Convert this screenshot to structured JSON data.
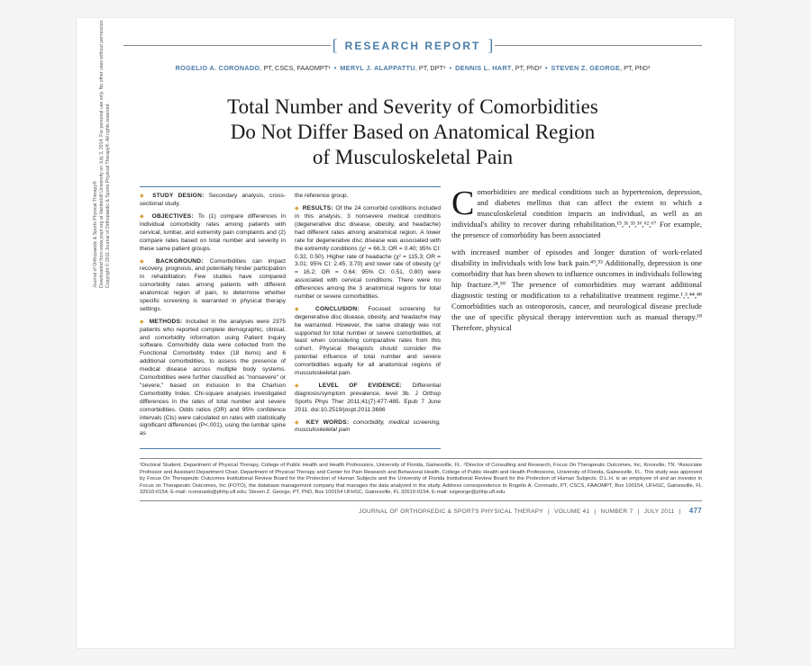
{
  "header": {
    "label": "RESEARCH REPORT"
  },
  "authors": [
    {
      "name": "ROGELIO A. CORONADO",
      "cred": ", PT, CSCS, FAAOMPT¹"
    },
    {
      "name": "MERYL J. ALAPPATTU",
      "cred": ", PT, DPT¹"
    },
    {
      "name": "DENNIS L. HART",
      "cred": ", PT, PhD²"
    },
    {
      "name": "STEVEN Z. GEORGE",
      "cred": ", PT, PhD³"
    }
  ],
  "title": "Total Number and Severity of Comorbidities Do Not Differ Based on Anatomical Region of Musculoskeletal Pain",
  "sidebar": {
    "l1": "Journal of Orthopaedic & Sports Physical Therapy®",
    "l2": "Downloaded from www.jospt.org at Vanderbilt University on July 3, 2014. For personal use only. No other uses without permission.",
    "l3": "Copyright © 2011 Journal of Orthopaedic & Sports Physical Therapy®. All rights reserved."
  },
  "abstract": {
    "col1": [
      {
        "label": "STUDY DESIGN:",
        "text": "Secondary analysis, cross-sectional study."
      },
      {
        "label": "OBJECTIVES:",
        "text": "To (1) compare differences in individual comorbidity rates among patients with cervical, lumbar, and extremity pain complaints and (2) compare rates based on total number and severity in these same patient groups."
      },
      {
        "label": "BACKGROUND:",
        "text": "Comorbidities can impact recovery, prognosis, and potentially hinder participation in rehabilitation. Few studies have compared comorbidity rates among patients with different anatomical region of pain, to determine whether specific screening is warranted in physical therapy settings."
      },
      {
        "label": "METHODS:",
        "text": "Included in the analyses were 2375 patients who reported complete demographic, clinical, and comorbidity information using Patient Inquiry software. Comorbidity data were collected from the Functional Comorbidity Index (18 items) and 6 additional comorbidities, to assess the presence of medical disease across multiple body systems. Comorbidities were further classified as \"nonsevere\" or \"severe,\" based on inclusion in the Charlson Comorbidity Index. Chi-square analyses investigated differences in the rates of total number and severe comorbidities. Odds ratios (OR) and 95% confidence intervals (CIs) were calculated on rates with statistically significant differences (P<.001), using the lumbar spine as"
      }
    ],
    "col2": [
      {
        "label": "",
        "text": "the reference group."
      },
      {
        "label": "RESULTS:",
        "text": "Of the 24 comorbid conditions included in this analysis, 3 nonsevere medical conditions (degenerative disc disease, obesity, and headache) had different rates among anatomical region. A lower rate for degenerative disc disease was associated with the extremity conditions (χ² = 66.3; OR = 0.40; 95% CI: 0.32, 0.50). Higher rate of headache (χ² = 115.3; OR = 3.01; 95% CI: 2.45, 3.70) and lower rate of obesity (χ² = 16.2; OR = 0.64; 95% CI: 0.51, 0.80) were associated with cervical conditions. There were no differences among the 3 anatomical regions for total number or severe comorbidities."
      },
      {
        "label": "CONCLUSION:",
        "text": "Focused screening for degenerative disc disease, obesity, and headache may be warranted. However, the same strategy was not supported for total number or severe comorbidities, at least when considering comparative rates from this cohort. Physical therapists should consider the potential influence of total number and severe comorbidities equally for all anatomical regions of musculoskeletal pain."
      },
      {
        "label": "LEVEL OF EVIDENCE:",
        "text": "Differential diagnosis/symptom prevalence, level 3b. J Orthop Sports Phys Ther 2011;41(7):477-485. Epub 7 June 2011. doi:10.2519/jospt.2011.3686"
      },
      {
        "label": "KEY WORDS:",
        "text": "comorbidity, medical screening, musculoskeletal pain",
        "kw": true
      }
    ]
  },
  "intro": {
    "p1": "omorbidities are medical conditions such as hypertension, depression, and diabetes mellitus that can affect the extent to which a musculoskeletal condition impacts an individual, as well as an individual's ability to recover during rehabilitation.¹⁵,³¹,³³,³⁶,⁶²,⁶⁷ For example, the presence of comorbidity has been associated",
    "p2": "with increased number of episodes and longer duration of work-related disability in individuals with low back pain.⁴⁹,⁵³ Additionally, depression is one comorbidity that has been shown to influence outcomes in individuals following hip fracture.²⁴,⁵⁰ The presence of comorbidities may warrant additional diagnostic testing or modification to a rehabilitative treatment regime.¹,³,⁴⁴,⁴⁸ Comorbidities such as osteoporosis, cancer, and neurological disease preclude the use of specific physical therapy intervention such as manual therapy.¹⁸ Therefore, physical"
  },
  "footnote": "¹Doctoral Student, Department of Physical Therapy, College of Public Health and Health Professions, University of Florida, Gainesville, FL. ²Director of Consulting and Research, Focus On Therapeutic Outcomes, Inc, Knoxville, TN. ³Associate Professor and Assistant Department Chair, Department of Physical Therapy and Center for Pain Research and Behavioral Health, College of Public Health and Health Professions, University of Florida, Gainesville, FL. This study was approved by Focus On Therapeutic Outcomes Institutional Review Board for the Protection of Human Subjects and the University of Florida Institutional Review Board for the Protection of Human Subjects. D.L.H. is an employee of and an investor in Focus on Therapeutic Outcomes, Inc (FOTO), the database management company that manages the data analyzed in the study. Address correspondence to Rogelio A. Coronado, PT, CSCS, FAAOMPT, Box 100154, UFHSC, Gainesville, FL 32610-0154. E-mail: rcoronado@phhp.ufl.edu; Steven Z. George, PT, PhD, Box 100154 UFHSC, Gainesville, FL 32610-0154. E-mail: szgeorge@phhp.ufl.edu",
  "footer": {
    "journal": "JOURNAL OF ORTHOPAEDIC & SPORTS PHYSICAL THERAPY",
    "vol": "VOLUME 41",
    "num": "NUMBER 7",
    "date": "JULY 2011",
    "page": "477"
  }
}
